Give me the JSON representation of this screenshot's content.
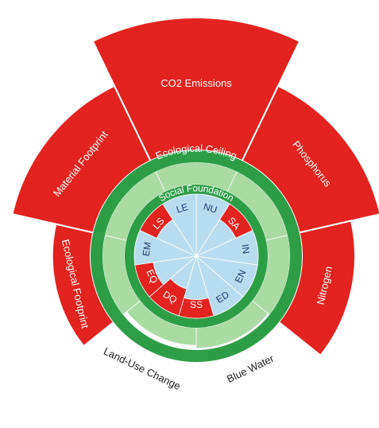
{
  "chart_data": {
    "type": "doughnut",
    "ceiling_label": "Ecological Ceiling",
    "foundation_label": "Social Foundation",
    "ring_color": "#2e9e46",
    "safe_color": "#a9dba2",
    "ecological": {
      "categories": [
        "CO2 Emissions",
        "Phosphorus",
        "Nitrogen",
        "Blue Water",
        "Land-Use Change",
        "Ecological Footprint",
        "Material Footprint"
      ],
      "values": [
        2.4,
        1.9,
        1.6,
        0.98,
        0.95,
        1.45,
        1.9
      ],
      "color": "#e2231f"
    },
    "social": {
      "categories": [
        "NU",
        "SA",
        "IN",
        "EN",
        "ED",
        "SS",
        "DQ",
        "EQ",
        "EM",
        "LS",
        "LE"
      ],
      "values": [
        1,
        0.7,
        1,
        1,
        1,
        0.7,
        0.55,
        0.7,
        1,
        0.7,
        1
      ],
      "color": "#b8dcef",
      "shortfall_color": "#e2231f"
    }
  }
}
